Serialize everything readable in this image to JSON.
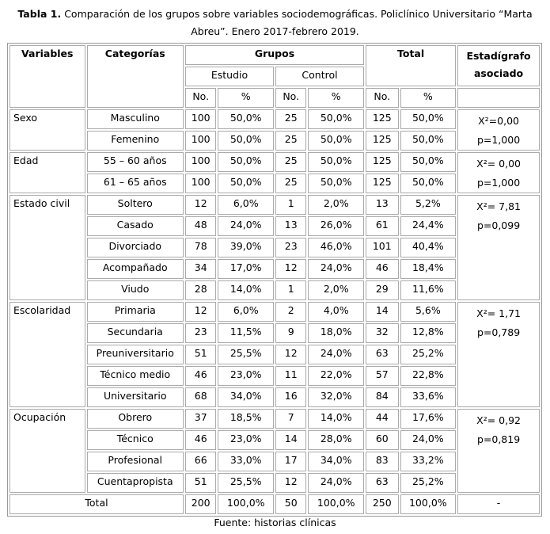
{
  "caption": {
    "label": "Tabla 1.",
    "text": "Comparación de los grupos sobre variables sociodemográficas. Policlínico Universitario “Marta Abreu”. Enero 2017-febrero 2019."
  },
  "table": {
    "headers": {
      "variables": "Variables",
      "categorias": "Categorías",
      "grupos": "Grupos",
      "total": "Total",
      "estadigrafo": "Estadígrafo asociado",
      "estudio": "Estudio",
      "control": "Control"
    },
    "subheaders": [
      "No.",
      "%",
      "No.",
      "%",
      "No.",
      "%"
    ],
    "groups": [
      {
        "variable": "Sexo",
        "stat": [
          "X²=0,00",
          "p=1,000"
        ],
        "rows": [
          [
            "Masculino",
            "100",
            "50,0%",
            "25",
            "50,0%",
            "125",
            "50,0%"
          ],
          [
            "Femenino",
            "100",
            "50,0%",
            "25",
            "50,0%",
            "125",
            "50,0%"
          ]
        ]
      },
      {
        "variable": "Edad",
        "stat": [
          "X²= 0,00",
          "p=1,000"
        ],
        "rows": [
          [
            "55 – 60 años",
            "100",
            "50,0%",
            "25",
            "50,0%",
            "125",
            "50,0%"
          ],
          [
            "61 – 65 años",
            "100",
            "50,0%",
            "25",
            "50,0%",
            "125",
            "50,0%"
          ]
        ]
      },
      {
        "variable": "Estado civil",
        "stat": [
          "X²= 7,81",
          "p=0,099"
        ],
        "rows": [
          [
            "Soltero",
            "12",
            "6,0%",
            "1",
            "2,0%",
            "13",
            "5,2%"
          ],
          [
            "Casado",
            "48",
            "24,0%",
            "13",
            "26,0%",
            "61",
            "24,4%"
          ],
          [
            "Divorciado",
            "78",
            "39,0%",
            "23",
            "46,0%",
            "101",
            "40,4%"
          ],
          [
            "Acompañado",
            "34",
            "17,0%",
            "12",
            "24,0%",
            "46",
            "18,4%"
          ],
          [
            "Viudo",
            "28",
            "14,0%",
            "1",
            "2,0%",
            "29",
            "11,6%"
          ]
        ]
      },
      {
        "variable": "Escolaridad",
        "stat": [
          "X²= 1,71",
          "p=0,789"
        ],
        "rows": [
          [
            "Primaria",
            "12",
            "6,0%",
            "2",
            "4,0%",
            "14",
            "5,6%"
          ],
          [
            "Secundaria",
            "23",
            "11,5%",
            "9",
            "18,0%",
            "32",
            "12,8%"
          ],
          [
            "Preuniversitario",
            "51",
            "25,5%",
            "12",
            "24,0%",
            "63",
            "25,2%"
          ],
          [
            "Técnico medio",
            "46",
            "23,0%",
            "11",
            "22,0%",
            "57",
            "22,8%"
          ],
          [
            "Universitario",
            "68",
            "34,0%",
            "16",
            "32,0%",
            "84",
            "33,6%"
          ]
        ]
      },
      {
        "variable": "Ocupación",
        "stat": [
          "X²= 0,92",
          "p=0,819"
        ],
        "rows": [
          [
            "Obrero",
            "37",
            "18,5%",
            "7",
            "14,0%",
            "44",
            "17,6%"
          ],
          [
            "Técnico",
            "46",
            "23,0%",
            "14",
            "28,0%",
            "60",
            "24,0%"
          ],
          [
            "Profesional",
            "66",
            "33,0%",
            "17",
            "34,0%",
            "83",
            "33,2%"
          ],
          [
            "Cuentapropista",
            "51",
            "25,5%",
            "12",
            "24,0%",
            "63",
            "25,2%"
          ]
        ]
      }
    ],
    "total_row": [
      "Total",
      "200",
      "100,0%",
      "50",
      "100,0%",
      "250",
      "100,0%",
      "-"
    ]
  },
  "source": "Fuente: historias clínicas"
}
